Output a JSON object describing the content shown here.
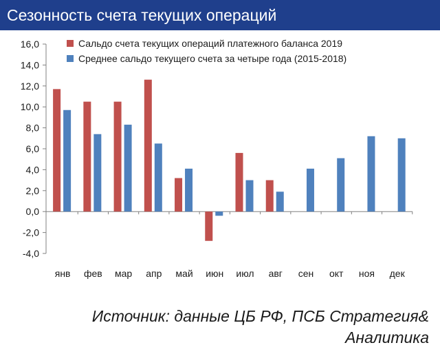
{
  "header": {
    "title": "Сезонность счета текущих операций"
  },
  "source": "Источник: данные ЦБ РФ, ПСБ Стратегия& Аналитика",
  "colors": {
    "header_bg": "#1f3f8c",
    "series_2019": "#c0504d",
    "series_avg": "#4f81bd"
  },
  "chart_data": {
    "type": "bar",
    "title": "",
    "xlabel": "",
    "ylabel": "",
    "categories": [
      "янв",
      "фев",
      "мар",
      "апр",
      "май",
      "июн",
      "июл",
      "авг",
      "сен",
      "окт",
      "ноя",
      "дек"
    ],
    "series": [
      {
        "name": "Сальдо счета текущих операций платежного баланса 2019",
        "color": "#c0504d",
        "values": [
          11.7,
          10.5,
          10.5,
          12.6,
          3.2,
          -2.8,
          5.6,
          3.0,
          null,
          null,
          null,
          null
        ]
      },
      {
        "name": "Среднее  сальдо текущего счета за четыре года (2015-2018)",
        "color": "#4f81bd",
        "values": [
          9.7,
          7.4,
          8.3,
          6.5,
          4.1,
          -0.4,
          3.0,
          1.9,
          4.1,
          5.1,
          7.2,
          7.0
        ]
      }
    ],
    "ylim": [
      -4.0,
      16.0
    ],
    "yticks": [
      "16,0",
      "14,0",
      "12,0",
      "10,0",
      "8,0",
      "6,0",
      "4,0",
      "2,0",
      "0,0",
      "-2,0",
      "-4,0"
    ],
    "ytick_values": [
      16,
      14,
      12,
      10,
      8,
      6,
      4,
      2,
      0,
      -2,
      -4
    ],
    "grid": false,
    "legend_position": "top-left"
  }
}
